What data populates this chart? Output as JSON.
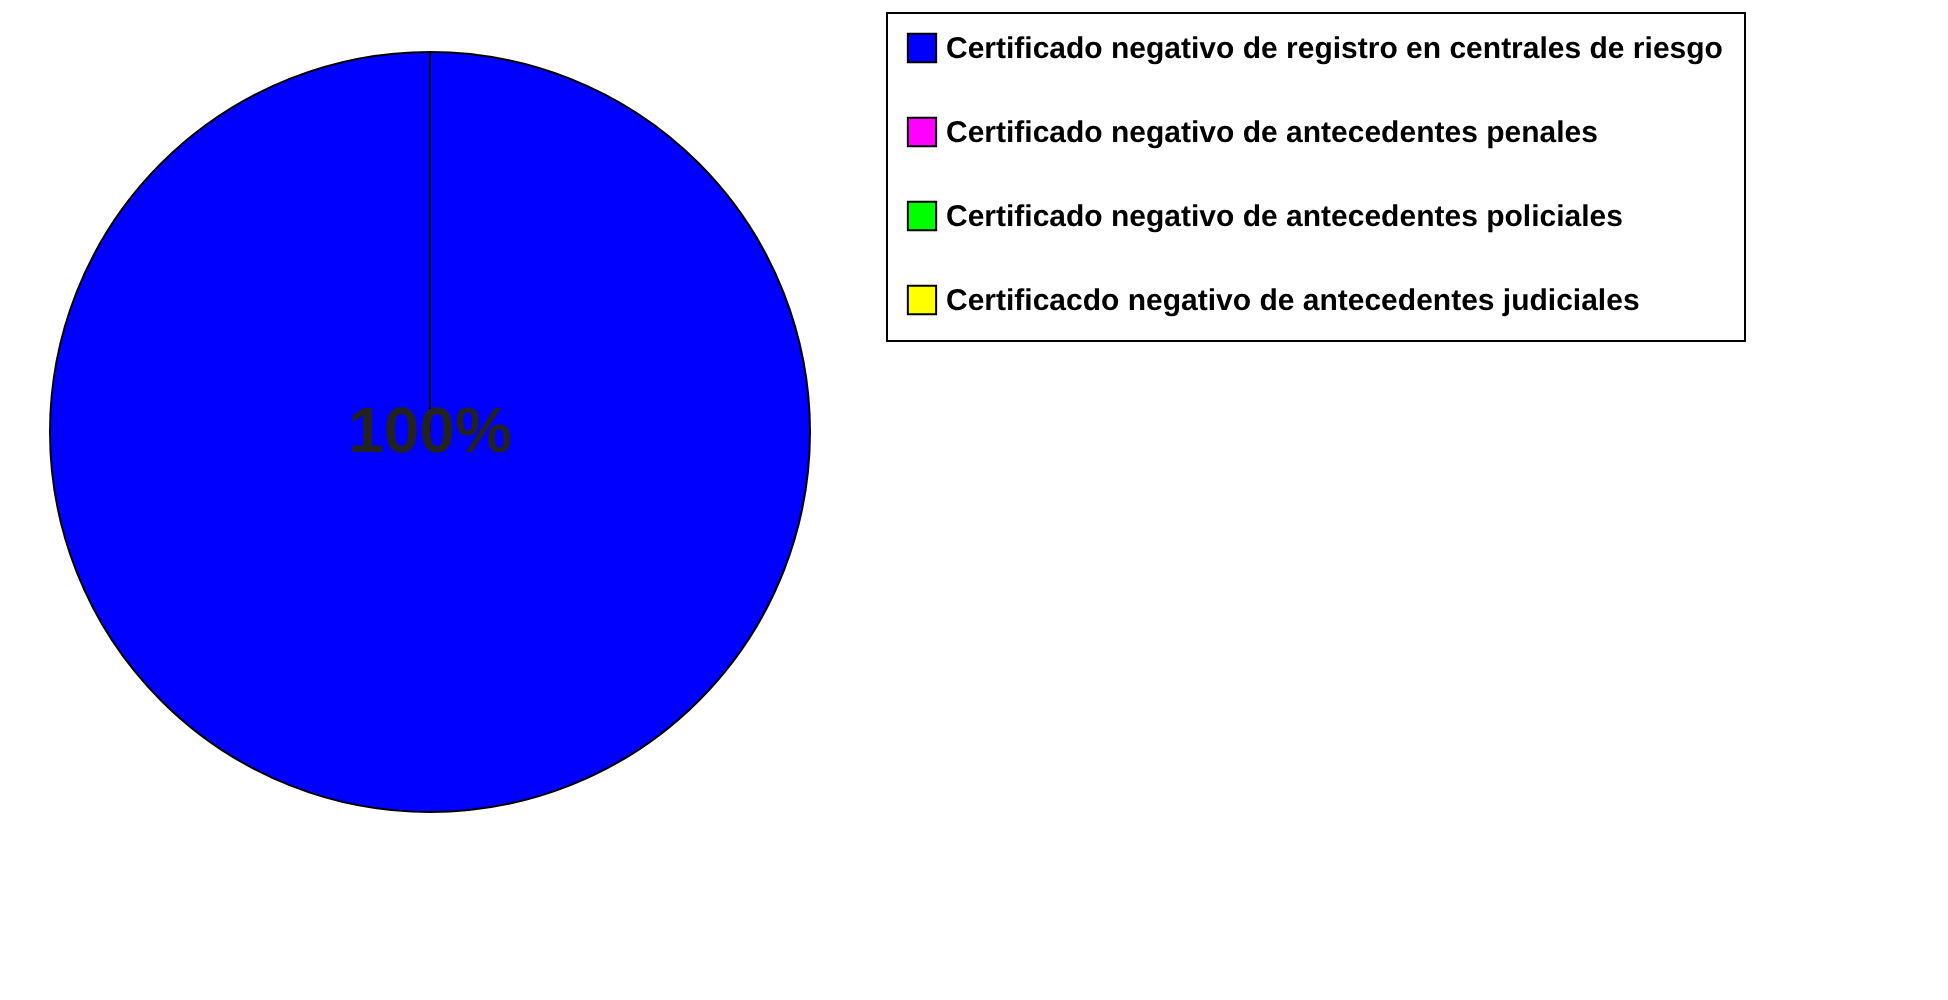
{
  "chart_data": {
    "type": "pie",
    "categories": [
      "Certificado negativo de registro en centrales de riesgo",
      "Certificado negativo de antecedentes penales",
      "Certificado negativo de antecedentes policiales",
      "Certificacdo negativo de antecedentes judiciales"
    ],
    "values": [
      100,
      0,
      0,
      0
    ],
    "colors": [
      "#0000ff",
      "#ff00ff",
      "#00ff00",
      "#ffff00"
    ],
    "value_labels": [
      "100%",
      null,
      null,
      null
    ],
    "legend": "right"
  }
}
